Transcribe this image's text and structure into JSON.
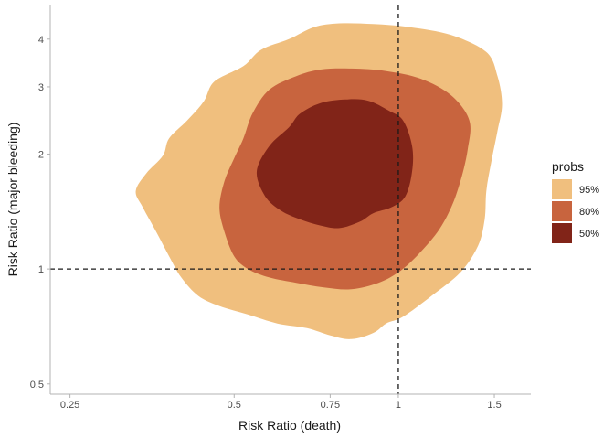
{
  "chart_data": {
    "type": "contour",
    "xlabel": "Risk Ratio (death)",
    "ylabel": "Risk Ratio (major bleeding)",
    "x_scale": "log",
    "y_scale": "log",
    "xlim": [
      0.23,
      1.75
    ],
    "ylim": [
      0.47,
      4.9
    ],
    "x_ticks": [
      {
        "value": 0.25,
        "label": "0.25"
      },
      {
        "value": 0.5,
        "label": "0.5"
      },
      {
        "value": 0.75,
        "label": "0.75"
      },
      {
        "value": 1,
        "label": "1"
      },
      {
        "value": 1.5,
        "label": "1.5"
      }
    ],
    "y_ticks": [
      {
        "value": 0.5,
        "label": "0.5"
      },
      {
        "value": 1,
        "label": "1"
      },
      {
        "value": 2,
        "label": "2"
      },
      {
        "value": 3,
        "label": "3"
      },
      {
        "value": 4,
        "label": "4"
      }
    ],
    "reference_lines": {
      "x": 1,
      "y": 1,
      "style": "dashed"
    },
    "grid": false,
    "legend": {
      "title": "probs",
      "position": "right",
      "entries": [
        {
          "label": "95%",
          "color": "#f0bf7e"
        },
        {
          "label": "80%",
          "color": "#c8643e"
        },
        {
          "label": "50%",
          "color": "#812418"
        }
      ]
    },
    "regions": [
      {
        "name": "95%",
        "color": "#f0bf7e",
        "points": [
          [
            0.34,
            1.45
          ],
          [
            0.33,
            1.6
          ],
          [
            0.345,
            1.78
          ],
          [
            0.37,
            1.98
          ],
          [
            0.38,
            2.2
          ],
          [
            0.41,
            2.45
          ],
          [
            0.44,
            2.75
          ],
          [
            0.46,
            3.1
          ],
          [
            0.52,
            3.4
          ],
          [
            0.56,
            3.75
          ],
          [
            0.63,
            4.0
          ],
          [
            0.7,
            4.3
          ],
          [
            0.78,
            4.4
          ],
          [
            0.9,
            4.38
          ],
          [
            1.05,
            4.3
          ],
          [
            1.25,
            4.1
          ],
          [
            1.45,
            3.7
          ],
          [
            1.52,
            3.2
          ],
          [
            1.55,
            2.7
          ],
          [
            1.52,
            2.3
          ],
          [
            1.48,
            1.9
          ],
          [
            1.45,
            1.6
          ],
          [
            1.44,
            1.35
          ],
          [
            1.4,
            1.15
          ],
          [
            1.3,
            0.98
          ],
          [
            1.15,
            0.85
          ],
          [
            1.02,
            0.75
          ],
          [
            0.95,
            0.72
          ],
          [
            0.9,
            0.68
          ],
          [
            0.82,
            0.655
          ],
          [
            0.75,
            0.67
          ],
          [
            0.68,
            0.7
          ],
          [
            0.6,
            0.72
          ],
          [
            0.53,
            0.76
          ],
          [
            0.47,
            0.8
          ],
          [
            0.43,
            0.85
          ],
          [
            0.4,
            0.95
          ],
          [
            0.38,
            1.08
          ],
          [
            0.36,
            1.25
          ]
        ]
      },
      {
        "name": "80%",
        "color": "#c8643e",
        "points": [
          [
            0.48,
            1.25
          ],
          [
            0.47,
            1.45
          ],
          [
            0.48,
            1.7
          ],
          [
            0.5,
            1.95
          ],
          [
            0.52,
            2.2
          ],
          [
            0.54,
            2.55
          ],
          [
            0.58,
            2.95
          ],
          [
            0.65,
            3.2
          ],
          [
            0.72,
            3.33
          ],
          [
            0.82,
            3.35
          ],
          [
            0.95,
            3.3
          ],
          [
            1.1,
            3.15
          ],
          [
            1.25,
            2.85
          ],
          [
            1.35,
            2.45
          ],
          [
            1.34,
            2.05
          ],
          [
            1.3,
            1.7
          ],
          [
            1.25,
            1.45
          ],
          [
            1.18,
            1.25
          ],
          [
            1.08,
            1.08
          ],
          [
            1.0,
            0.98
          ],
          [
            0.92,
            0.92
          ],
          [
            0.82,
            0.885
          ],
          [
            0.73,
            0.895
          ],
          [
            0.65,
            0.92
          ],
          [
            0.58,
            0.95
          ],
          [
            0.53,
            1.0
          ],
          [
            0.5,
            1.08
          ]
        ]
      },
      {
        "name": "50%",
        "color": "#812418",
        "points": [
          [
            0.55,
            1.8
          ],
          [
            0.58,
            2.1
          ],
          [
            0.63,
            2.35
          ],
          [
            0.66,
            2.55
          ],
          [
            0.72,
            2.72
          ],
          [
            0.8,
            2.78
          ],
          [
            0.88,
            2.76
          ],
          [
            0.96,
            2.6
          ],
          [
            1.02,
            2.45
          ],
          [
            1.06,
            2.1
          ],
          [
            1.06,
            1.8
          ],
          [
            1.03,
            1.55
          ],
          [
            0.97,
            1.45
          ],
          [
            0.9,
            1.4
          ],
          [
            0.85,
            1.33
          ],
          [
            0.78,
            1.28
          ],
          [
            0.72,
            1.3
          ],
          [
            0.66,
            1.35
          ],
          [
            0.61,
            1.42
          ],
          [
            0.57,
            1.55
          ]
        ]
      }
    ]
  }
}
